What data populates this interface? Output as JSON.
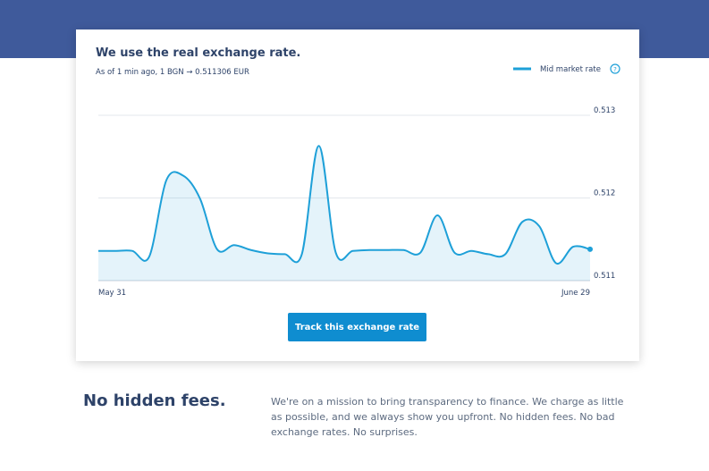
{
  "chart_data": {
    "type": "line",
    "title": "We use the real exchange rate.",
    "subtitle": "As of 1 min ago, 1 BGN → 0.511306 EUR",
    "categories": [
      "May 31",
      null,
      null,
      null,
      null,
      null,
      null,
      null,
      null,
      null,
      null,
      null,
      null,
      null,
      null,
      null,
      null,
      null,
      null,
      null,
      null,
      null,
      null,
      null,
      null,
      null,
      null,
      null,
      null,
      "June 29"
    ],
    "series": [
      {
        "name": "Mid market rate",
        "color": "#1ea0d8",
        "values": [
          0.51136,
          0.51136,
          0.51136,
          0.51129,
          0.51221,
          0.51227,
          0.51199,
          0.51138,
          0.51143,
          0.51137,
          0.51133,
          0.51132,
          0.51132,
          0.51263,
          0.51134,
          0.51136,
          0.51137,
          0.51137,
          0.51137,
          0.51134,
          0.51179,
          0.51134,
          0.51136,
          0.51132,
          0.51132,
          0.51171,
          0.51166,
          0.51121,
          0.51141,
          0.51138
        ]
      }
    ],
    "ylim": [
      0.511,
      0.513
    ],
    "yticks": [
      0.511,
      0.512,
      0.513
    ],
    "grid": true,
    "legend": "top-right"
  },
  "button": {
    "label": "Track this exchange rate"
  },
  "section": {
    "heading": "No hidden fees.",
    "body": "We're on a mission to bring transparency to finance. We charge as little as possible, and we always show you upfront. No hidden fees. No bad exchange rates. No surprises."
  }
}
